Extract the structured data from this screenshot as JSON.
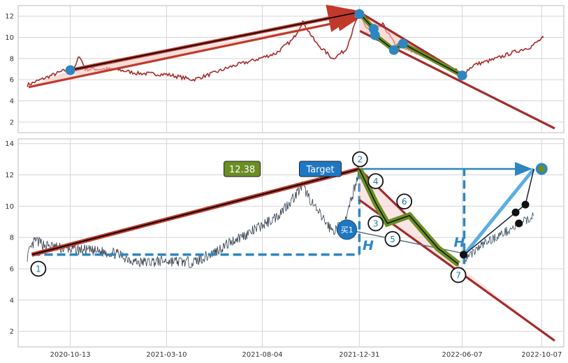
{
  "chart_data": [
    {
      "panel": "top",
      "type": "line",
      "ylim": [
        1,
        13
      ],
      "xlim": [
        "2020-07-25",
        "2022-11-10"
      ],
      "yticks": [
        2,
        4,
        6,
        8,
        10,
        12
      ],
      "grid": true,
      "price_color": "#a52a2a",
      "price_keypoints": [
        [
          "2020-08-08",
          5.5
        ],
        [
          "2020-09-10",
          6.3
        ],
        [
          "2020-10-01",
          6.8
        ],
        [
          "2020-10-20",
          7.1
        ],
        [
          "2020-10-27",
          8.3
        ],
        [
          "2020-11-05",
          7.0
        ],
        [
          "2020-12-20",
          7.0
        ],
        [
          "2021-01-25",
          6.6
        ],
        [
          "2021-03-10",
          6.5
        ],
        [
          "2021-04-20",
          6.0
        ],
        [
          "2021-05-20",
          6.6
        ],
        [
          "2021-06-20",
          7.3
        ],
        [
          "2021-07-20",
          7.8
        ],
        [
          "2021-08-25",
          8.5
        ],
        [
          "2021-09-20",
          9.8
        ],
        [
          "2021-10-05",
          11.5
        ],
        [
          "2021-10-25",
          9.5
        ],
        [
          "2021-11-20",
          8.0
        ],
        [
          "2021-12-10",
          8.8
        ],
        [
          "2021-12-31",
          12.4
        ],
        [
          "2022-01-10",
          11.0
        ],
        [
          "2022-01-20",
          10.5
        ],
        [
          "2022-02-05",
          11.2
        ],
        [
          "2022-02-22",
          9.5
        ],
        [
          "2022-03-15",
          8.8
        ],
        [
          "2022-04-10",
          8.3
        ],
        [
          "2022-05-05",
          7.5
        ],
        [
          "2022-05-25",
          7.0
        ],
        [
          "2022-06-07",
          6.5
        ],
        [
          "2022-06-25",
          7.4
        ],
        [
          "2022-07-25",
          7.9
        ],
        [
          "2022-08-25",
          8.6
        ],
        [
          "2022-09-20",
          9.1
        ],
        [
          "2022-10-10",
          10.0
        ]
      ],
      "trend_lines": [
        {
          "from": [
            "2020-10-13",
            6.9
          ],
          "to": [
            "2021-12-31",
            12.38
          ],
          "color": "#c0392b"
        },
        {
          "from": [
            "2021-12-31",
            12.38
          ],
          "to": [
            "2022-06-10",
            6.4
          ],
          "color": "#a52a2a"
        },
        {
          "from": [
            "2022-01-01",
            10.6
          ],
          "to": [
            "2022-10-27",
            1.4
          ],
          "color": "#a52a2a"
        },
        {
          "from": [
            "2020-08-10",
            5.3
          ],
          "to": [
            "2021-12-28",
            11.8
          ],
          "color": "#c0392b"
        }
      ],
      "markers": [
        [
          "2020-10-13",
          6.9
        ],
        [
          "2021-12-31",
          12.2
        ],
        [
          "2022-01-22",
          10.8
        ],
        [
          "2022-01-24",
          10.2
        ],
        [
          "2022-02-22",
          8.8
        ],
        [
          "2022-03-08",
          9.4
        ],
        [
          "2022-06-07",
          6.4
        ]
      ]
    },
    {
      "panel": "bottom",
      "type": "line",
      "ylim": [
        1,
        14.3
      ],
      "xlim": [
        "2020-07-25",
        "2022-11-10"
      ],
      "yticks": [
        2,
        4,
        6,
        8,
        10,
        12,
        14
      ],
      "xticks": [
        "2020-10-13",
        "2021-03-10",
        "2021-08-04",
        "2021-12-31",
        "2022-06-07",
        "2022-10-07"
      ],
      "grid": true,
      "price_color": "#2f3b4a",
      "price_keypoints": [
        [
          "2020-08-08",
          6.8
        ],
        [
          "2020-08-20",
          7.8
        ],
        [
          "2020-09-05",
          7.5
        ],
        [
          "2020-10-01",
          7.3
        ],
        [
          "2020-11-01",
          7.2
        ],
        [
          "2020-12-20",
          7.0
        ],
        [
          "2021-01-25",
          6.4
        ],
        [
          "2021-03-10",
          6.5
        ],
        [
          "2021-04-20",
          6.4
        ],
        [
          "2021-05-20",
          7.0
        ],
        [
          "2021-06-20",
          7.8
        ],
        [
          "2021-07-20",
          8.4
        ],
        [
          "2021-08-25",
          9.3
        ],
        [
          "2021-09-20",
          10.5
        ],
        [
          "2021-10-05",
          11.3
        ],
        [
          "2021-10-25",
          9.8
        ],
        [
          "2021-11-20",
          8.4
        ],
        [
          "2021-12-10",
          9.0
        ],
        [
          "2021-12-31",
          12.38
        ]
      ],
      "post_keypoints": [
        [
          "2022-06-10",
          6.6
        ],
        [
          "2022-07-10",
          7.6
        ],
        [
          "2022-08-10",
          8.3
        ],
        [
          "2022-09-10",
          9.0
        ],
        [
          "2022-09-25",
          9.4
        ]
      ],
      "trend_lines": [
        {
          "from": [
            "2020-08-15",
            6.9
          ],
          "to": [
            "2021-12-31",
            12.38
          ],
          "color": "#c0392b"
        },
        {
          "from": [
            "2021-12-31",
            12.38
          ],
          "to": [
            "2022-06-01",
            6.2
          ],
          "color": "#a52a2a"
        },
        {
          "from": [
            "2021-12-31",
            10.4
          ],
          "to": [
            "2022-10-27",
            1.4
          ],
          "color": "#a52a2a"
        }
      ],
      "zigzag": [
        [
          "2021-12-31",
          12.38
        ],
        [
          "2022-01-25",
          10.2
        ],
        [
          "2022-02-12",
          8.9
        ],
        [
          "2022-03-18",
          9.4
        ],
        [
          "2022-05-01",
          7.3
        ],
        [
          "2022-06-01",
          6.3
        ]
      ],
      "dashed_lines": [
        {
          "from": [
            "2020-08-15",
            6.9
          ],
          "to": [
            "2021-12-31",
            6.9
          ]
        },
        {
          "from": [
            "2021-12-31",
            6.9
          ],
          "to": [
            "2021-12-31",
            12.38
          ]
        },
        {
          "from": [
            "2022-06-10",
            6.3
          ],
          "to": [
            "2022-06-10",
            12.38
          ]
        }
      ],
      "target_line": {
        "from": [
          "2021-12-31",
          12.38
        ],
        "to": [
          "2022-09-20",
          12.38
        ]
      },
      "projection": {
        "from": [
          "2022-06-10",
          6.9
        ],
        "to": [
          "2022-09-25",
          12.38
        ]
      },
      "buy_line": {
        "from": [
          "2021-12-12",
          8.5
        ],
        "to": [
          "2022-06-07",
          7.0
        ]
      },
      "black_dots": [
        [
          "2022-08-28",
          9.6
        ],
        [
          "2022-09-02",
          8.9
        ],
        [
          "2022-09-12",
          10.1
        ],
        [
          "2022-06-09",
          6.9
        ]
      ],
      "target_dot": [
        "2022-10-07",
        12.38
      ],
      "numbered_points": [
        {
          "label": "1",
          "at": [
            "2020-08-25",
            6.0
          ]
        },
        {
          "label": "2",
          "at": [
            "2022-01-01",
            13.0
          ]
        },
        {
          "label": "3",
          "at": [
            "2022-01-25",
            8.9
          ]
        },
        {
          "label": "4",
          "at": [
            "2022-01-25",
            11.6
          ]
        },
        {
          "label": "5",
          "at": [
            "2022-02-20",
            7.9
          ]
        },
        {
          "label": "6",
          "at": [
            "2022-03-10",
            10.3
          ]
        },
        {
          "label": "7",
          "at": [
            "2022-06-01",
            5.6
          ]
        }
      ],
      "annotations": {
        "value_box": {
          "text": "12.38",
          "at": [
            "2021-07-05",
            12.38
          ],
          "color": "#6b8e23"
        },
        "target_box": {
          "text": "Target",
          "at": [
            "2021-11-01",
            12.38
          ],
          "color": "#1f77c4"
        },
        "buy_label": {
          "text": "买1",
          "at": [
            "2021-12-12",
            8.5
          ],
          "color": "#1f77c4"
        },
        "h_labels": [
          {
            "text": "H",
            "at": [
              "2022-01-05",
              7.2
            ]
          },
          {
            "text": "H",
            "at": [
              "2022-05-25",
              7.4
            ]
          }
        ]
      }
    }
  ]
}
